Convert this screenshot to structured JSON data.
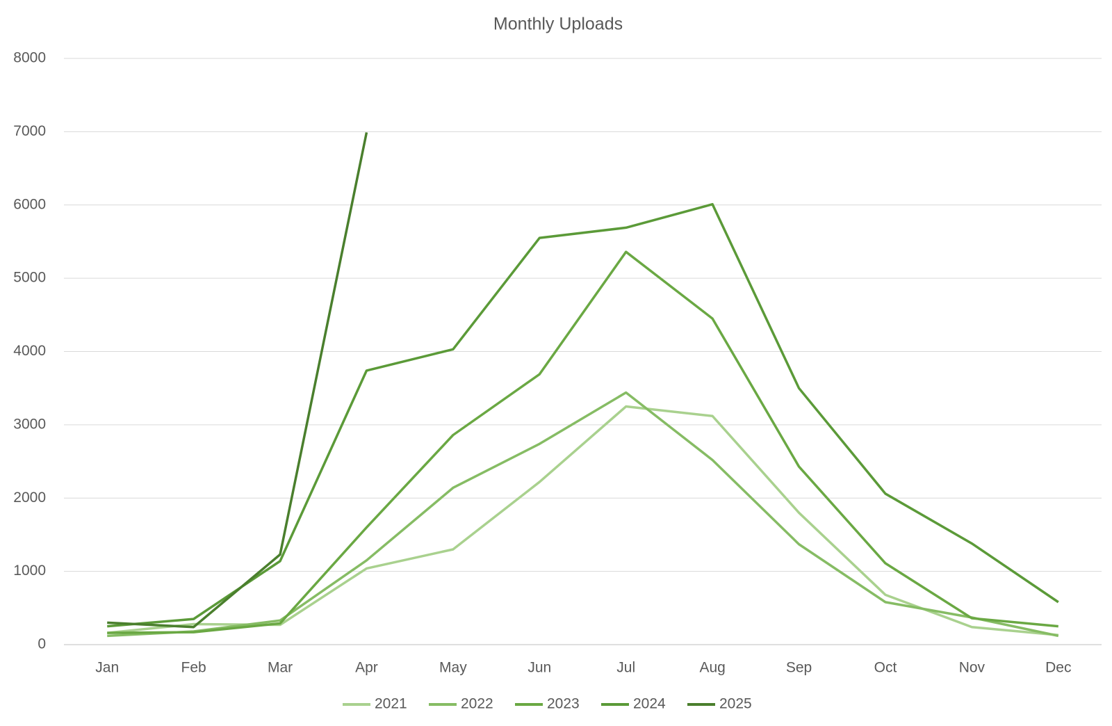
{
  "chart_data": {
    "type": "line",
    "title": "Monthly Uploads",
    "categories": [
      "Jan",
      "Feb",
      "Mar",
      "Apr",
      "May",
      "Jun",
      "Jul",
      "Aug",
      "Sep",
      "Oct",
      "Nov",
      "Dec"
    ],
    "series": [
      {
        "name": "2021",
        "color": "#a9d18e",
        "values": [
          160,
          280,
          270,
          1040,
          1300,
          2220,
          3250,
          3120,
          1800,
          680,
          240,
          130
        ]
      },
      {
        "name": "2022",
        "color": "#86bc64",
        "values": [
          120,
          180,
          330,
          1150,
          2140,
          2740,
          3440,
          2520,
          1370,
          580,
          370,
          120
        ]
      },
      {
        "name": "2023",
        "color": "#6aa843",
        "values": [
          160,
          170,
          290,
          1600,
          2860,
          3690,
          5360,
          4450,
          2430,
          1110,
          360,
          250
        ]
      },
      {
        "name": "2024",
        "color": "#5b9a38",
        "values": [
          250,
          350,
          1140,
          3740,
          4030,
          5550,
          5690,
          6010,
          3500,
          2060,
          1380,
          580
        ]
      },
      {
        "name": "2025",
        "color": "#4a7f2d",
        "values": [
          300,
          240,
          1230,
          6990,
          null,
          null,
          null,
          null,
          null,
          null,
          null,
          null
        ]
      }
    ],
    "ylim": [
      0,
      8000
    ],
    "yticks": [
      0,
      1000,
      2000,
      3000,
      4000,
      5000,
      6000,
      7000,
      8000
    ],
    "grid": true,
    "legend": "bottom"
  }
}
